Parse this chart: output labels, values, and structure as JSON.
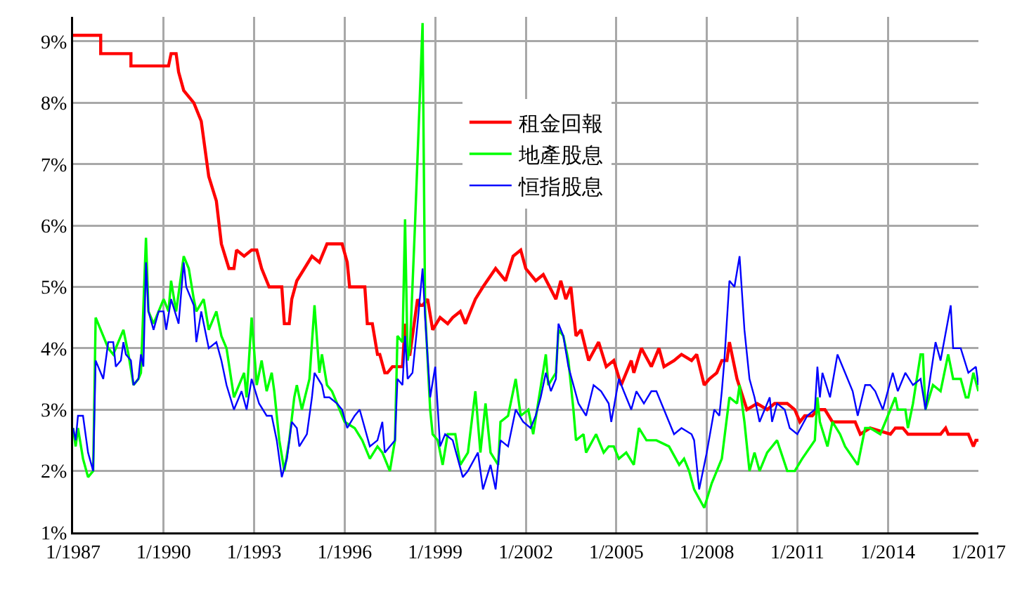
{
  "chart_data": {
    "type": "line",
    "legend": "top",
    "grid": true,
    "xlim": [
      "1987-01",
      "2017-01"
    ],
    "ylim": [
      1,
      9.4
    ],
    "xticks": [
      {
        "value": "1987-01",
        "label": "1/1987"
      },
      {
        "value": "1990-01",
        "label": "1/1990"
      },
      {
        "value": "1993-01",
        "label": "1/1993"
      },
      {
        "value": "1996-01",
        "label": "1/1996"
      },
      {
        "value": "1999-01",
        "label": "1/1999"
      },
      {
        "value": "2002-01",
        "label": "1/2002"
      },
      {
        "value": "2005-01",
        "label": "1/2005"
      },
      {
        "value": "2008-01",
        "label": "1/2008"
      },
      {
        "value": "2011-01",
        "label": "1/2011"
      },
      {
        "value": "2014-01",
        "label": "1/2014"
      },
      {
        "value": "2017-01",
        "label": "1/2017"
      }
    ],
    "yticks": [
      {
        "value": 1,
        "label": "1%"
      },
      {
        "value": 2,
        "label": "2%"
      },
      {
        "value": 3,
        "label": "3%"
      },
      {
        "value": 4,
        "label": "4%"
      },
      {
        "value": 5,
        "label": "5%"
      },
      {
        "value": 6,
        "label": "6%"
      },
      {
        "value": 7,
        "label": "7%"
      },
      {
        "value": 8,
        "label": "8%"
      },
      {
        "value": 9,
        "label": "9%"
      }
    ],
    "series": [
      {
        "name": "租金回報",
        "color": "#ff0000",
        "x": [
          "1987-01",
          "1987-12",
          "1987-12",
          "1988-12",
          "1988-12",
          "1990-03",
          "1990-04",
          "1990-06",
          "1990-07",
          "1990-09",
          "1991-01",
          "1991-04",
          "1991-07",
          "1991-10",
          "1991-12",
          "1992-03",
          "1992-05",
          "1992-06",
          "1992-09",
          "1992-12",
          "1993-02",
          "1993-04",
          "1993-07",
          "1993-12",
          "1994-01",
          "1994-03",
          "1994-04",
          "1994-06",
          "1994-09",
          "1994-12",
          "1995-03",
          "1995-06",
          "1995-12",
          "1996-02",
          "1996-03",
          "1996-09",
          "1996-10",
          "1996-12",
          "1997-02",
          "1997-03",
          "1997-05",
          "1997-06",
          "1997-08",
          "1997-12",
          "1998-01",
          "1998-02",
          "1998-03",
          "1998-06",
          "1998-07",
          "1998-08",
          "1998-10",
          "1998-12",
          "1999-03",
          "1999-06",
          "1999-08",
          "1999-11",
          "2000-01",
          "2000-05",
          "2000-08",
          "2001-01",
          "2001-05",
          "2001-08",
          "2001-11",
          "2002-01",
          "2002-05",
          "2002-08",
          "2003-01",
          "2003-03",
          "2003-05",
          "2003-07",
          "2003-09",
          "2003-11",
          "2004-02",
          "2004-06",
          "2004-09",
          "2004-12",
          "2005-03",
          "2005-07",
          "2005-08",
          "2005-11",
          "2006-03",
          "2006-06",
          "2006-08",
          "2006-12",
          "2007-03",
          "2007-07",
          "2007-09",
          "2007-12",
          "2008-02",
          "2008-05",
          "2008-07",
          "2008-09",
          "2008-10",
          "2009-01",
          "2009-05",
          "2009-09",
          "2010-01",
          "2010-04",
          "2010-09",
          "2010-12",
          "2011-02",
          "2011-04",
          "2011-07",
          "2011-09",
          "2011-12",
          "2012-03",
          "2012-12",
          "2013-02",
          "2013-06",
          "2014-02",
          "2014-04",
          "2014-07",
          "2014-09",
          "2015-10",
          "2015-12",
          "2016-01",
          "2016-09",
          "2016-11",
          "2016-12",
          "2017-01"
        ],
        "values": [
          9.1,
          9.1,
          8.8,
          8.8,
          8.6,
          8.6,
          8.8,
          8.8,
          8.5,
          8.2,
          8.0,
          7.7,
          6.8,
          6.4,
          5.7,
          5.3,
          5.3,
          5.6,
          5.5,
          5.6,
          5.6,
          5.3,
          5.0,
          5.0,
          4.4,
          4.4,
          4.8,
          5.1,
          5.3,
          5.5,
          5.4,
          5.7,
          5.7,
          5.4,
          5.0,
          5.0,
          4.4,
          4.4,
          3.9,
          3.9,
          3.6,
          3.6,
          3.7,
          3.7,
          4.4,
          3.9,
          3.9,
          4.8,
          4.7,
          4.7,
          4.8,
          4.3,
          4.5,
          4.4,
          4.5,
          4.6,
          4.4,
          4.8,
          5.0,
          5.3,
          5.1,
          5.5,
          5.6,
          5.3,
          5.1,
          5.2,
          4.8,
          5.1,
          4.8,
          5.0,
          4.2,
          4.3,
          3.8,
          4.1,
          3.7,
          3.8,
          3.4,
          3.8,
          3.6,
          4.0,
          3.7,
          4.0,
          3.7,
          3.8,
          3.9,
          3.8,
          3.9,
          3.4,
          3.5,
          3.6,
          3.8,
          3.8,
          4.1,
          3.5,
          3.0,
          3.1,
          3.0,
          3.1,
          3.1,
          3.0,
          2.8,
          2.9,
          2.9,
          3.0,
          3.0,
          2.8,
          2.8,
          2.6,
          2.7,
          2.6,
          2.7,
          2.7,
          2.6,
          2.6,
          2.7,
          2.6,
          2.6,
          2.4,
          2.5,
          2.5
        ]
      },
      {
        "name": "地產股息",
        "color": "#00ff00",
        "x": [
          "1987-01",
          "1987-02",
          "1987-03",
          "1987-05",
          "1987-07",
          "1987-09",
          "1987-10",
          "1988-01",
          "1988-03",
          "1988-05",
          "1988-07",
          "1988-09",
          "1988-11",
          "1989-01",
          "1989-03",
          "1989-04",
          "1989-06",
          "1989-07",
          "1989-09",
          "1989-11",
          "1990-01",
          "1990-03",
          "1990-04",
          "1990-06",
          "1990-09",
          "1990-11",
          "1991-01",
          "1991-02",
          "1991-05",
          "1991-07",
          "1991-10",
          "1991-12",
          "1992-02",
          "1992-05",
          "1992-09",
          "1992-10",
          "1992-12",
          "1993-02",
          "1993-04",
          "1993-06",
          "1993-08",
          "1993-09",
          "1993-11",
          "1994-01",
          "1994-03",
          "1994-05",
          "1994-06",
          "1994-08",
          "1994-11",
          "1995-01",
          "1995-03",
          "1995-04",
          "1995-06",
          "1995-08",
          "1995-11",
          "1996-01",
          "1996-05",
          "1996-08",
          "1996-11",
          "1997-02",
          "1997-04",
          "1997-07",
          "1997-09",
          "1997-10",
          "1997-12",
          "1998-01",
          "1998-02",
          "1998-03",
          "1998-05",
          "1998-08",
          "1998-09",
          "1998-11",
          "1998-12",
          "1999-02",
          "1999-04",
          "1999-06",
          "1999-09",
          "1999-11",
          "2000-02",
          "2000-05",
          "2000-07",
          "2000-09",
          "2000-11",
          "2001-02",
          "2001-03",
          "2001-06",
          "2001-09",
          "2001-11",
          "2002-02",
          "2002-04",
          "2002-09",
          "2002-10",
          "2003-01",
          "2003-02",
          "2003-04",
          "2003-06",
          "2003-08",
          "2003-09",
          "2003-12",
          "2004-01",
          "2004-05",
          "2004-08",
          "2004-10",
          "2004-12",
          "2005-02",
          "2005-05",
          "2005-08",
          "2005-10",
          "2006-01",
          "2006-05",
          "2006-10",
          "2007-02",
          "2007-04",
          "2007-06",
          "2007-08",
          "2007-12",
          "2008-03",
          "2008-05",
          "2008-07",
          "2008-10",
          "2009-01",
          "2009-02",
          "2009-04",
          "2009-06",
          "2009-08",
          "2009-10",
          "2010-01",
          "2010-05",
          "2010-09",
          "2010-12",
          "2011-03",
          "2011-08",
          "2011-09",
          "2011-10",
          "2012-01",
          "2012-03",
          "2012-06",
          "2012-08",
          "2013-01",
          "2013-04",
          "2013-06",
          "2013-10",
          "2014-01",
          "2014-04",
          "2014-05",
          "2014-08",
          "2014-09",
          "2014-11",
          "2015-02",
          "2015-03",
          "2015-04",
          "2015-07",
          "2015-10",
          "2016-01",
          "2016-03",
          "2016-06",
          "2016-08",
          "2016-09",
          "2016-11",
          "2017-01"
        ],
        "values": [
          2.7,
          2.4,
          2.7,
          2.2,
          1.9,
          2.0,
          4.5,
          4.2,
          4.0,
          3.9,
          4.1,
          4.3,
          3.9,
          3.4,
          3.5,
          3.6,
          5.8,
          4.6,
          4.4,
          4.6,
          4.8,
          4.6,
          5.1,
          4.6,
          5.5,
          5.3,
          4.8,
          4.6,
          4.8,
          4.3,
          4.6,
          4.2,
          4.0,
          3.2,
          3.6,
          3.2,
          4.5,
          3.4,
          3.8,
          3.3,
          3.6,
          3.3,
          2.5,
          2.0,
          2.5,
          3.2,
          3.4,
          3.0,
          3.5,
          4.7,
          3.6,
          3.9,
          3.4,
          3.3,
          3.0,
          2.8,
          2.7,
          2.5,
          2.2,
          2.4,
          2.3,
          2.0,
          2.5,
          4.2,
          4.1,
          6.1,
          3.8,
          4.0,
          6.0,
          9.3,
          4.6,
          3.0,
          2.6,
          2.5,
          2.1,
          2.6,
          2.6,
          2.1,
          2.3,
          3.3,
          2.3,
          3.1,
          2.3,
          2.1,
          2.8,
          2.9,
          3.5,
          2.9,
          3.0,
          2.6,
          3.9,
          3.4,
          3.6,
          4.3,
          4.2,
          3.8,
          3.0,
          2.5,
          2.6,
          2.3,
          2.6,
          2.3,
          2.4,
          2.4,
          2.2,
          2.3,
          2.1,
          2.7,
          2.5,
          2.5,
          2.4,
          2.1,
          2.2,
          2.0,
          1.7,
          1.4,
          1.8,
          2.0,
          2.2,
          3.2,
          3.1,
          3.4,
          2.8,
          2.0,
          2.3,
          2.0,
          2.3,
          2.5,
          2.0,
          2.0,
          2.2,
          2.5,
          3.2,
          2.8,
          2.4,
          2.8,
          2.6,
          2.4,
          2.1,
          2.7,
          2.7,
          2.6,
          2.9,
          3.2,
          3.0,
          3.0,
          2.7,
          3.1,
          3.9,
          3.9,
          3.0,
          3.4,
          3.3,
          3.9,
          3.5,
          3.5,
          3.2,
          3.2,
          3.6,
          3.3
        ]
      },
      {
        "name": "恒指股息",
        "color": "#0000ff",
        "x": [
          "1987-01",
          "1987-02",
          "1987-03",
          "1987-05",
          "1987-07",
          "1987-09",
          "1987-10",
          "1988-01",
          "1988-03",
          "1988-05",
          "1988-06",
          "1988-08",
          "1988-09",
          "1988-10",
          "1988-12",
          "1989-01",
          "1989-03",
          "1989-04",
          "1989-05",
          "1989-06",
          "1989-07",
          "1989-09",
          "1989-11",
          "1990-01",
          "1990-02",
          "1990-04",
          "1990-07",
          "1990-09",
          "1990-10",
          "1991-01",
          "1991-02",
          "1991-04",
          "1991-07",
          "1991-10",
          "1991-12",
          "1992-02",
          "1992-05",
          "1992-08",
          "1992-10",
          "1992-12",
          "1993-03",
          "1993-06",
          "1993-08",
          "1993-10",
          "1993-12",
          "1994-02",
          "1994-04",
          "1994-06",
          "1994-07",
          "1994-10",
          "1994-12",
          "1995-01",
          "1995-04",
          "1995-05",
          "1995-07",
          "1995-10",
          "1995-12",
          "1996-02",
          "1996-05",
          "1996-07",
          "1996-11",
          "1997-02",
          "1997-04",
          "1997-05",
          "1997-07",
          "1997-09",
          "1997-10",
          "1997-12",
          "1998-01",
          "1998-02",
          "1998-04",
          "1998-06",
          "1998-08",
          "1998-09",
          "1998-11",
          "1999-01",
          "1999-03",
          "1999-05",
          "1999-08",
          "1999-10",
          "1999-12",
          "2000-02",
          "2000-06",
          "2000-08",
          "2000-11",
          "2001-01",
          "2001-03",
          "2001-06",
          "2001-09",
          "2001-12",
          "2002-03",
          "2002-05",
          "2002-07",
          "2002-09",
          "2002-11",
          "2003-01",
          "2003-02",
          "2003-04",
          "2003-06",
          "2003-10",
          "2004-01",
          "2004-04",
          "2004-07",
          "2004-10",
          "2004-11",
          "2005-02",
          "2005-04",
          "2005-07",
          "2005-09",
          "2005-12",
          "2006-03",
          "2006-05",
          "2006-08",
          "2006-12",
          "2007-03",
          "2007-07",
          "2007-08",
          "2007-10",
          "2008-01",
          "2008-04",
          "2008-06",
          "2008-07",
          "2008-08",
          "2008-10",
          "2008-12",
          "2009-02",
          "2009-04",
          "2009-06",
          "2009-08",
          "2009-10",
          "2010-02",
          "2010-03",
          "2010-05",
          "2010-08",
          "2010-10",
          "2011-01",
          "2011-05",
          "2011-08",
          "2011-09",
          "2011-10",
          "2011-11",
          "2012-02",
          "2012-05",
          "2012-08",
          "2012-11",
          "2013-01",
          "2013-04",
          "2013-06",
          "2013-08",
          "2013-11",
          "2014-03",
          "2014-05",
          "2014-08",
          "2014-11",
          "2015-02",
          "2015-04",
          "2015-08",
          "2015-10",
          "2016-02",
          "2016-03",
          "2016-06",
          "2016-09",
          "2016-12",
          "2017-01"
        ],
        "values": [
          2.7,
          2.5,
          2.9,
          2.9,
          2.3,
          2.0,
          3.8,
          3.5,
          4.1,
          4.1,
          3.7,
          3.8,
          4.1,
          3.9,
          3.8,
          3.4,
          3.5,
          3.9,
          3.7,
          5.4,
          4.6,
          4.3,
          4.6,
          4.6,
          4.3,
          4.8,
          4.4,
          5.4,
          5.0,
          4.7,
          4.1,
          4.6,
          4.0,
          4.1,
          3.8,
          3.4,
          3.0,
          3.3,
          3.0,
          3.5,
          3.1,
          2.9,
          2.9,
          2.5,
          1.9,
          2.2,
          2.8,
          2.7,
          2.4,
          2.6,
          3.2,
          3.6,
          3.4,
          3.2,
          3.2,
          3.1,
          3.0,
          2.7,
          2.9,
          3.0,
          2.4,
          2.5,
          2.8,
          2.3,
          2.4,
          2.5,
          3.5,
          3.4,
          4.2,
          3.5,
          3.6,
          4.4,
          5.3,
          4.5,
          3.2,
          3.7,
          2.4,
          2.6,
          2.5,
          2.2,
          1.9,
          2.0,
          2.3,
          1.7,
          2.1,
          1.7,
          2.5,
          2.4,
          3.0,
          2.8,
          2.7,
          2.9,
          3.2,
          3.6,
          3.3,
          3.5,
          4.4,
          4.2,
          3.7,
          3.1,
          2.9,
          3.4,
          3.3,
          3.1,
          2.8,
          3.5,
          3.3,
          3.0,
          3.3,
          3.1,
          3.3,
          3.3,
          3.0,
          2.6,
          2.7,
          2.6,
          2.5,
          1.7,
          2.3,
          3.0,
          2.9,
          3.3,
          3.8,
          5.1,
          5.0,
          5.5,
          4.3,
          3.5,
          3.2,
          2.8,
          3.2,
          2.8,
          3.1,
          3.0,
          2.7,
          2.6,
          2.9,
          3.0,
          3.7,
          3.2,
          3.6,
          3.2,
          3.9,
          3.6,
          3.3,
          2.9,
          3.4,
          3.4,
          3.3,
          3.0,
          3.6,
          3.3,
          3.6,
          3.4,
          3.5,
          3.0,
          4.1,
          3.8,
          4.7,
          4.0,
          4.0,
          3.6,
          3.7,
          3.4
        ]
      }
    ]
  }
}
